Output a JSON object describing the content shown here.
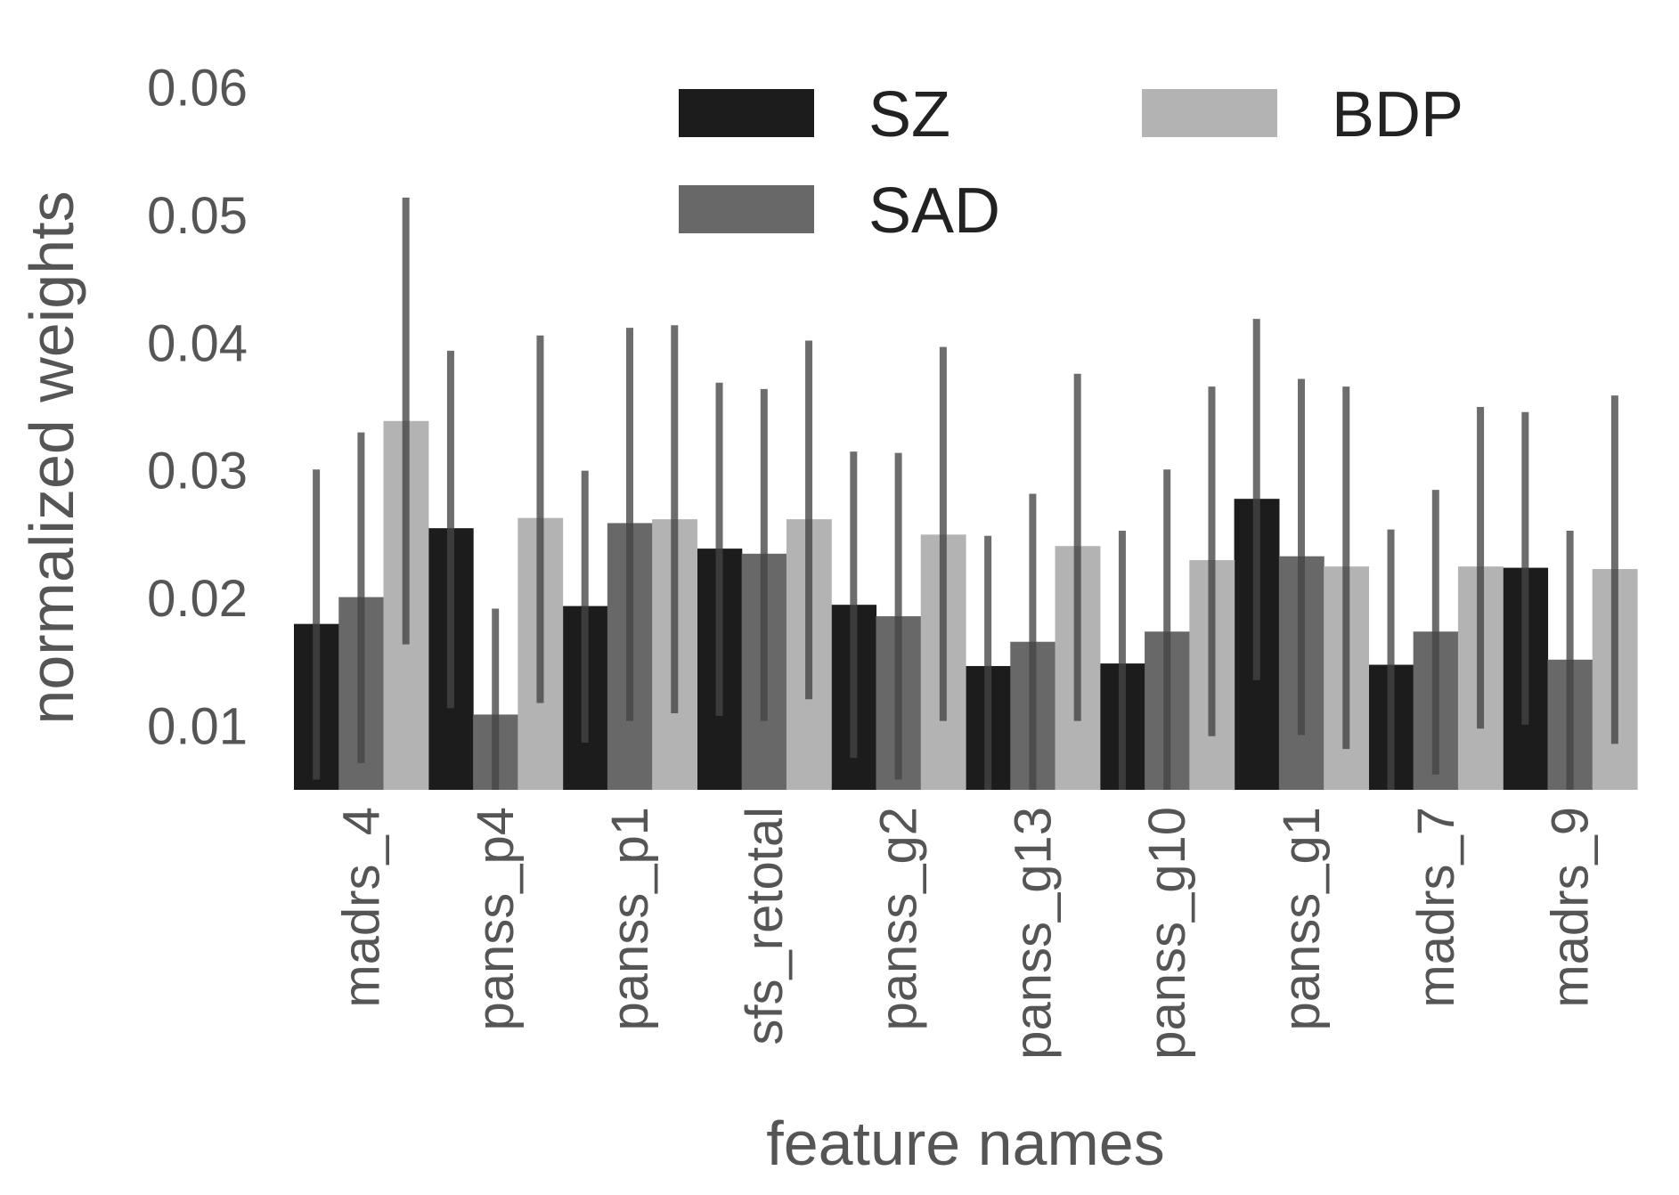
{
  "chart_data": {
    "type": "bar",
    "title": "",
    "xlabel": "feature names",
    "ylabel": "normalized weights",
    "ylim": [
      0.005,
      0.062
    ],
    "yticks": [
      0.01,
      0.02,
      0.03,
      0.04,
      0.05,
      0.06
    ],
    "ytick_labels": [
      "0.01",
      "0.02",
      "0.03",
      "0.04",
      "0.05",
      "0.06"
    ],
    "grid": false,
    "error_bars": true,
    "legend_position": "top-center",
    "categories": [
      "madrs_4",
      "panss_p4",
      "panss_p1",
      "sfs_retotal",
      "panss_g2",
      "panss_g13",
      "panss_g10",
      "panss_g1",
      "madrs_7",
      "madrs_9"
    ],
    "series": [
      {
        "name": "SZ",
        "color": "#1c1c1c",
        "values": [
          0.018,
          0.0255,
          0.0194,
          0.0239,
          0.0195,
          0.0147,
          0.0149,
          0.0278,
          0.0148,
          0.0224
        ],
        "error_low": [
          0.0058,
          0.0114,
          0.0087,
          0.0108,
          0.0075,
          0.005,
          0.005,
          0.0136,
          0.005,
          0.0101
        ],
        "error_high": [
          0.0301,
          0.0394,
          0.03,
          0.0369,
          0.0315,
          0.0249,
          0.0253,
          0.0419,
          0.0254,
          0.0346
        ]
      },
      {
        "name": "SAD",
        "color": "#686868",
        "values": [
          0.0201,
          0.0109,
          0.0259,
          0.0235,
          0.0186,
          0.0166,
          0.0174,
          0.0233,
          0.0174,
          0.0152
        ],
        "error_low": [
          0.0071,
          0.005,
          0.0104,
          0.0104,
          0.0058,
          0.005,
          0.005,
          0.0093,
          0.0062,
          0.005
        ],
        "error_high": [
          0.033,
          0.0192,
          0.0412,
          0.0364,
          0.0314,
          0.0282,
          0.0301,
          0.0372,
          0.0285,
          0.0253
        ]
      },
      {
        "name": "BDP",
        "color": "#b3b3b3",
        "values": [
          0.0339,
          0.0263,
          0.0262,
          0.0262,
          0.025,
          0.0241,
          0.023,
          0.0225,
          0.0225,
          0.0223
        ],
        "error_low": [
          0.0164,
          0.0118,
          0.011,
          0.0121,
          0.0104,
          0.0104,
          0.0092,
          0.0082,
          0.0098,
          0.0086
        ],
        "error_high": [
          0.0514,
          0.0406,
          0.0414,
          0.0402,
          0.0397,
          0.0376,
          0.0366,
          0.0366,
          0.035,
          0.0359
        ]
      }
    ]
  }
}
